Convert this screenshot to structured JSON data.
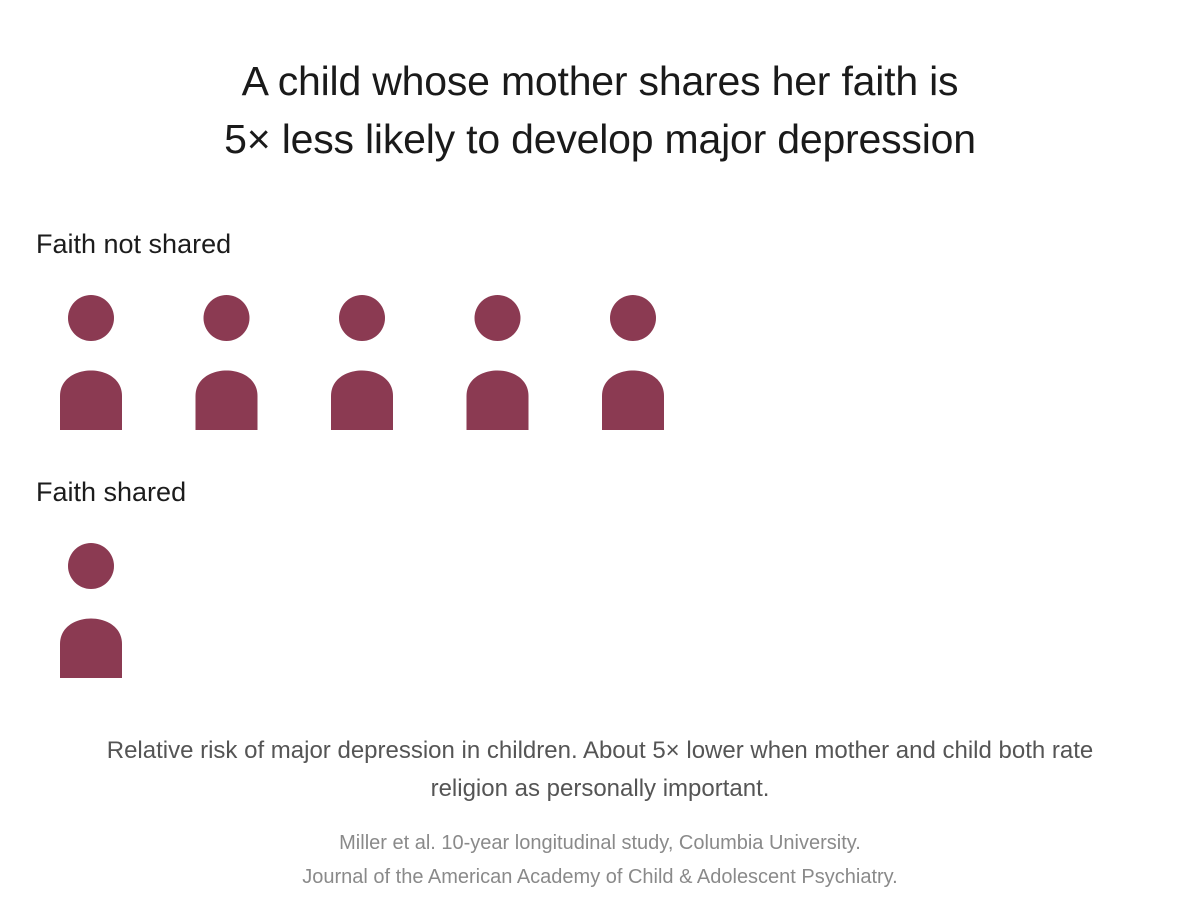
{
  "title": {
    "line1": "A child whose mother shares her faith is",
    "line2": "5× less likely to develop major depression"
  },
  "icon_color": "#8b3a52",
  "icon_name": "person-icon",
  "chart_data": {
    "type": "pictograph",
    "title": "A child whose mother shares her faith is 5× less likely to develop major depression",
    "categories": [
      "Faith not shared",
      "Faith shared"
    ],
    "values": [
      5,
      1
    ],
    "unit": "relative risk of major depression (person icons)"
  },
  "groups": [
    {
      "label": "Faith not shared",
      "count": 5
    },
    {
      "label": "Faith shared",
      "count": 1
    }
  ],
  "caption": {
    "line1": "Relative risk of major depression in children. About 5× lower when mother and child both rate",
    "line2": "religion as personally important."
  },
  "source": {
    "line1": "Miller et al. 10-year longitudinal study, Columbia University.",
    "line2": "Journal of the American Academy of Child & Adolescent Psychiatry."
  }
}
